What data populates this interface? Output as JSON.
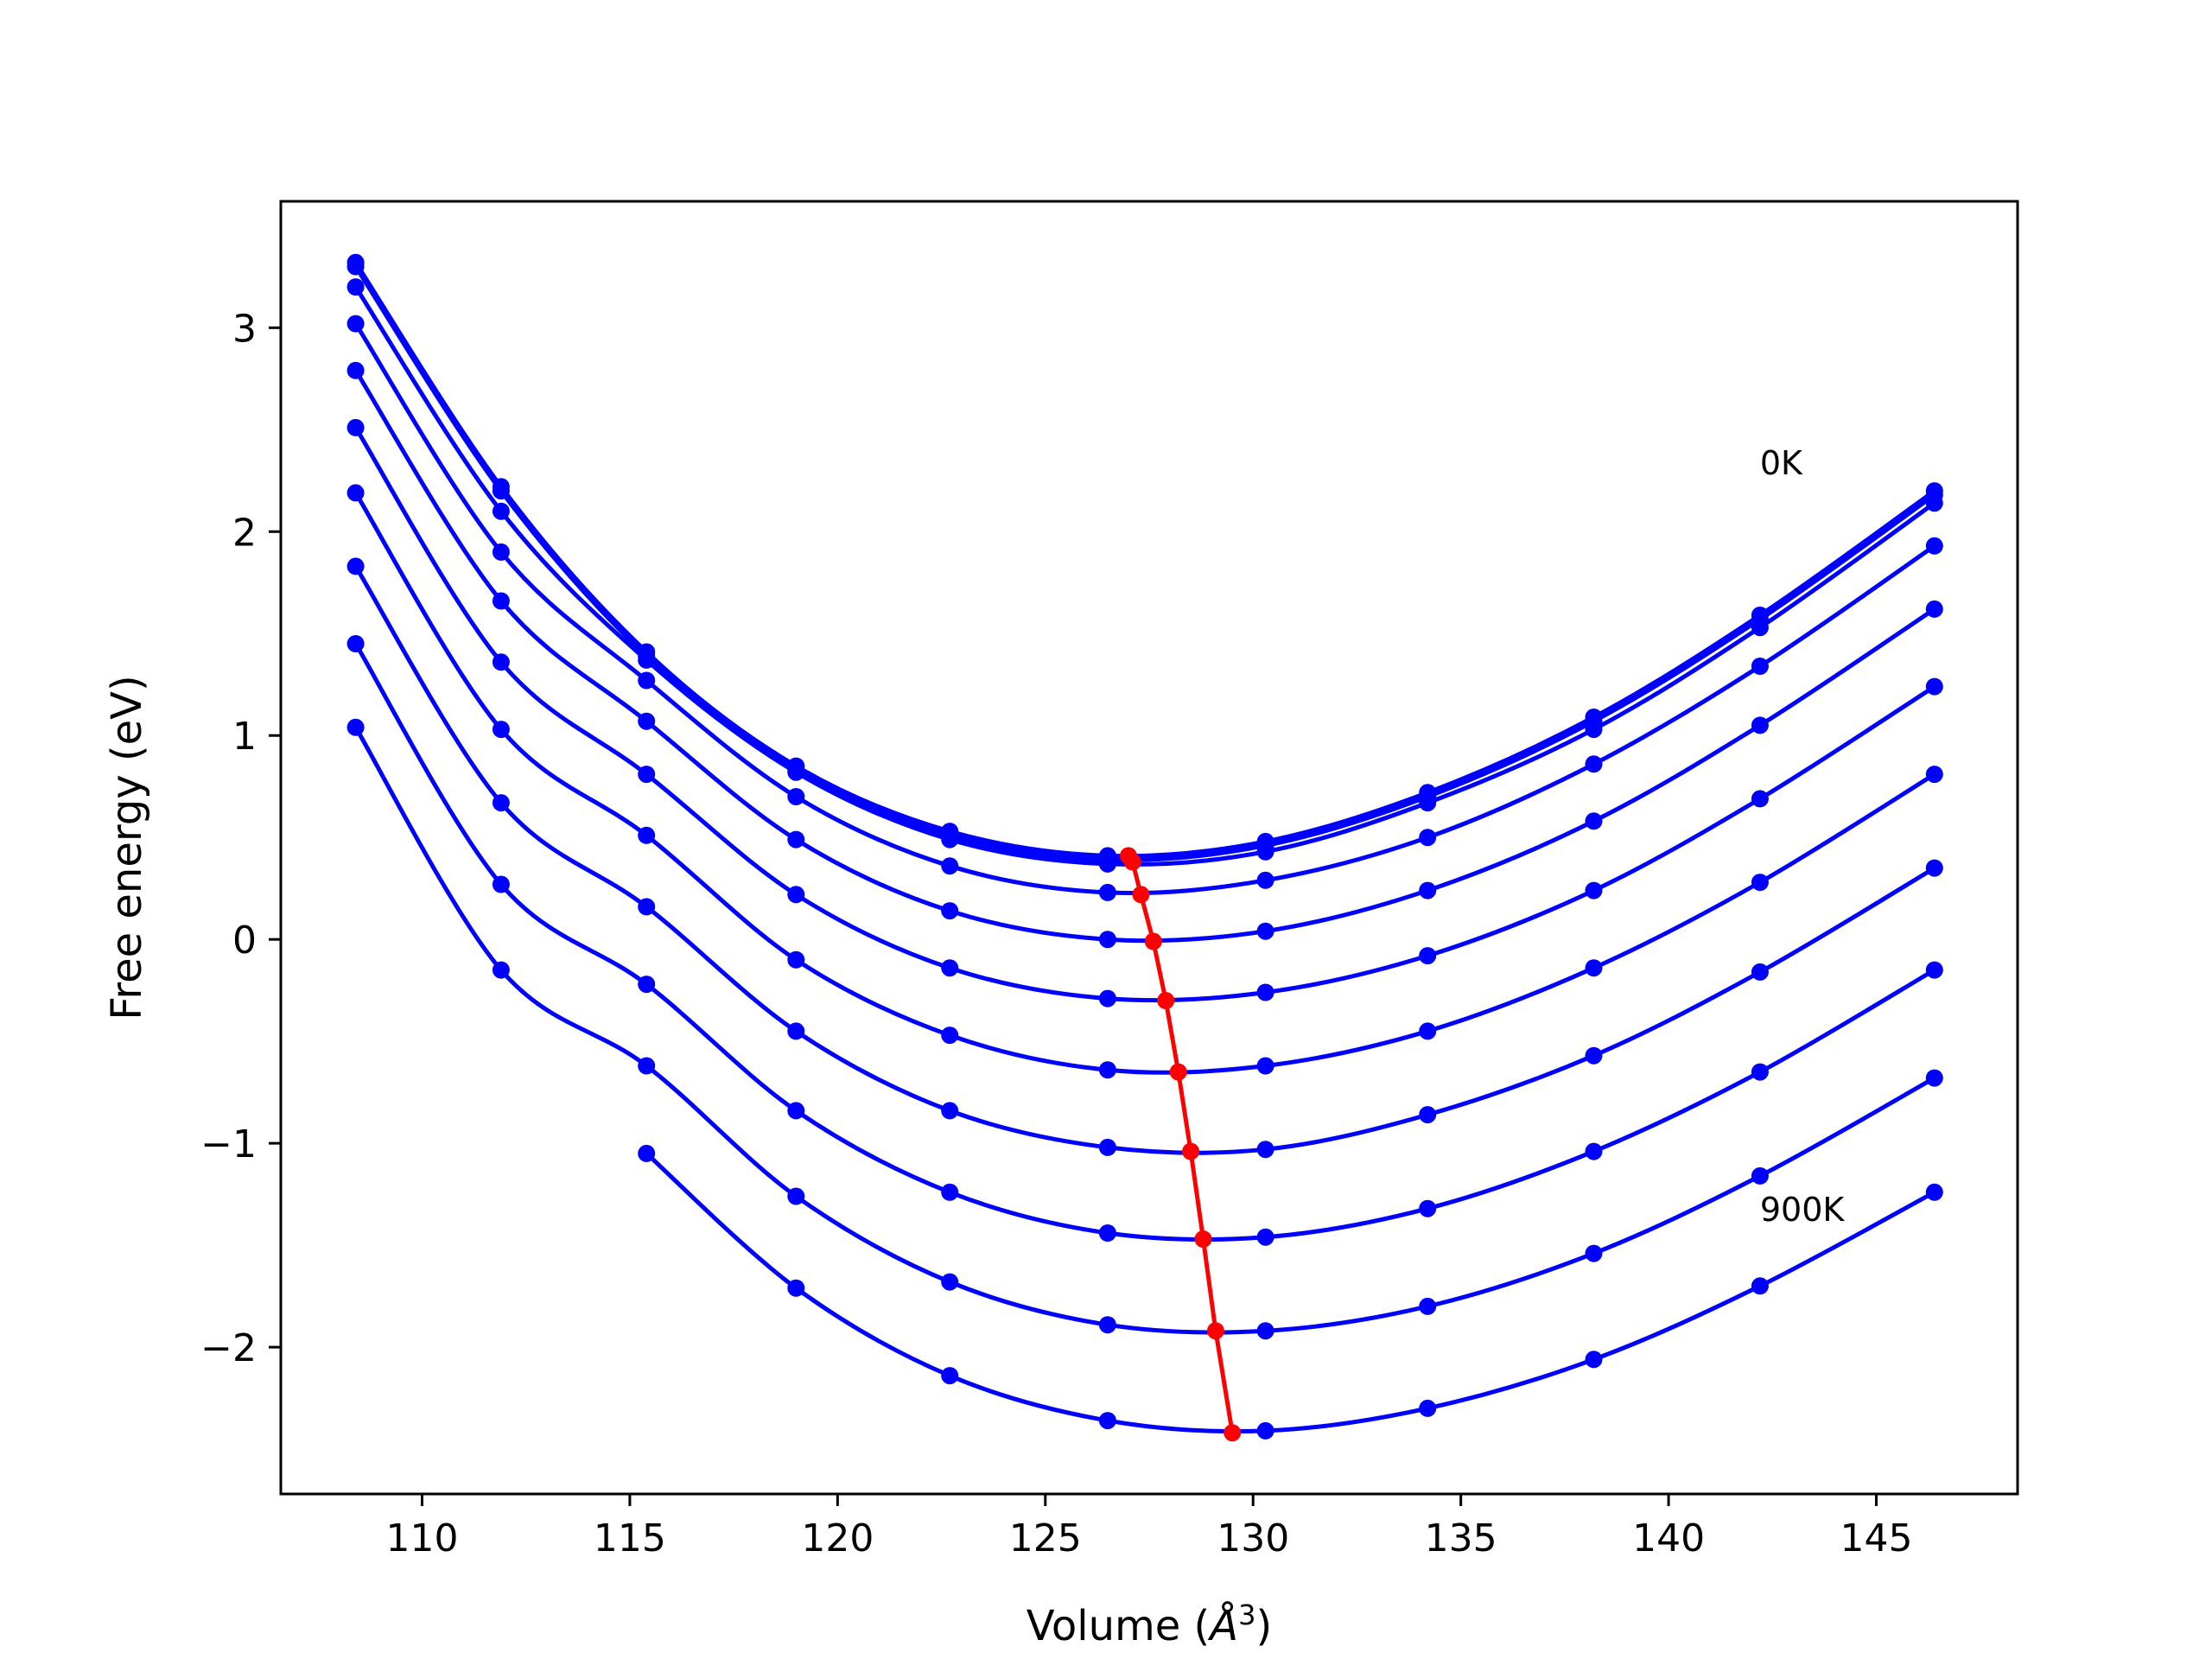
{
  "chart_data": {
    "type": "line",
    "xlabel": "Volume (",
    "xlabel_unit": "Å",
    "xlabel_sup": "3",
    "xlabel_close": ")",
    "ylabel": "Free energy (eV)",
    "xlim": [
      106.6,
      148.4
    ],
    "ylim": [
      -2.72,
      3.62
    ],
    "xticks": [
      110,
      115,
      120,
      125,
      130,
      135,
      140,
      145
    ],
    "yticks": [
      -2,
      -1,
      0,
      1,
      2,
      3
    ],
    "ytick_labels": [
      "−2",
      "−1",
      "0",
      "1",
      "2",
      "3"
    ],
    "grid": false,
    "series_color": "#0000ff",
    "min_color": "#ff0000",
    "x": [
      108.4,
      111.9,
      115.4,
      119.0,
      122.7,
      126.5,
      130.3,
      134.2,
      138.2,
      142.2,
      146.4
    ],
    "series": [
      {
        "values": [
          3.32,
          2.22,
          1.41,
          0.85,
          0.53,
          0.41,
          0.48,
          0.72,
          1.09,
          1.59,
          2.2
        ]
      },
      {
        "values": [
          3.3,
          2.2,
          1.39,
          0.83,
          0.51,
          0.39,
          0.46,
          0.7,
          1.07,
          1.57,
          2.18
        ]
      },
      {
        "values": [
          3.2,
          2.1,
          1.37,
          0.82,
          0.49,
          0.37,
          0.43,
          0.67,
          1.03,
          1.53,
          2.14
        ]
      },
      {
        "values": [
          3.02,
          1.9,
          1.27,
          0.7,
          0.36,
          0.23,
          0.29,
          0.5,
          0.86,
          1.34,
          1.93
        ]
      },
      {
        "values": [
          2.79,
          1.66,
          1.07,
          0.49,
          0.14,
          0.0,
          0.04,
          0.24,
          0.58,
          1.05,
          1.62
        ]
      },
      {
        "values": [
          2.51,
          1.36,
          0.81,
          0.22,
          -0.14,
          -0.29,
          -0.26,
          -0.08,
          0.24,
          0.69,
          1.24
        ]
      },
      {
        "values": [
          2.19,
          1.03,
          0.51,
          -0.1,
          -0.47,
          -0.64,
          -0.62,
          -0.45,
          -0.14,
          0.28,
          0.81
        ]
      },
      {
        "values": [
          1.83,
          0.67,
          0.16,
          -0.45,
          -0.84,
          -1.02,
          -1.03,
          -0.86,
          -0.57,
          -0.16,
          0.35
        ]
      },
      {
        "values": [
          1.45,
          0.27,
          -0.22,
          -0.84,
          -1.24,
          -1.44,
          -1.46,
          -1.32,
          -1.04,
          -0.65,
          -0.15
        ]
      },
      {
        "values": [
          1.04,
          -0.15,
          -0.62,
          -1.26,
          -1.68,
          -1.89,
          -1.92,
          -1.8,
          -1.54,
          -1.16,
          -0.68
        ]
      },
      {
        "values": [
          null,
          null,
          -1.05,
          -1.71,
          -2.14,
          -2.36,
          -2.41,
          -2.3,
          -2.06,
          -1.7,
          -1.24
        ]
      }
    ],
    "minima": {
      "x": [
        127.0,
        127.1,
        127.3,
        127.6,
        127.9,
        128.2,
        128.5,
        128.8,
        129.1,
        129.5
      ],
      "y": [
        0.41,
        0.38,
        0.22,
        -0.01,
        -0.3,
        -0.65,
        -1.04,
        -1.47,
        -1.92,
        -2.42
      ]
    },
    "annotations": [
      {
        "text": "0K",
        "x": 142.2,
        "y": 2.28
      },
      {
        "text": "900K",
        "x": 142.2,
        "y": -1.38
      }
    ]
  }
}
